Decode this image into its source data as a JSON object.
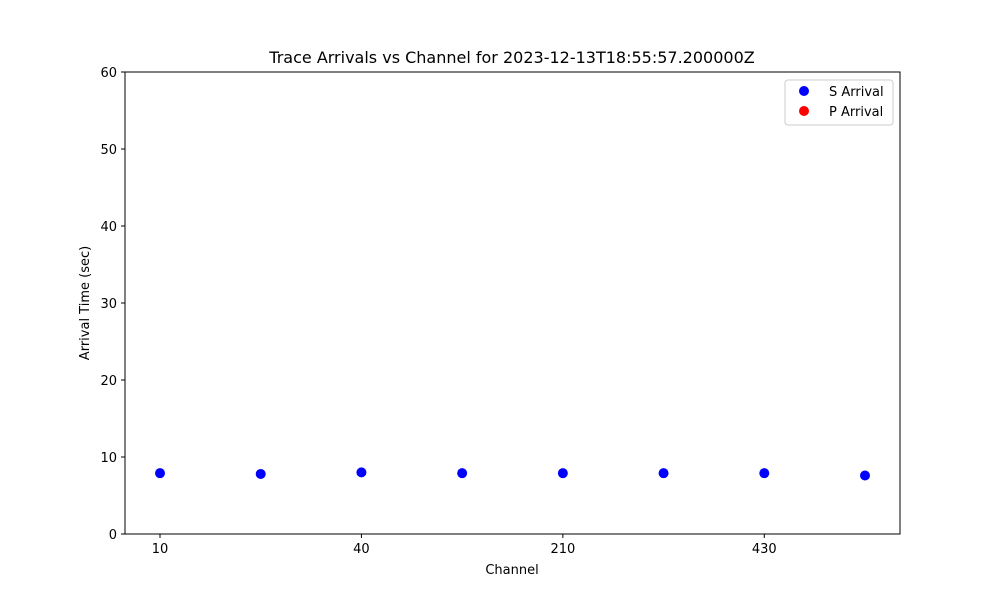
{
  "chart_data": {
    "type": "scatter",
    "title": "Trace Arrivals vs Channel for 2023-12-13T18:55:57.200000Z",
    "xlabel": "Channel",
    "ylabel": "Arrival Time (sec)",
    "categories": [
      "10",
      "",
      "40",
      "",
      "210",
      "",
      "430",
      ""
    ],
    "xtick_labels": [
      "10",
      "40",
      "210",
      "430"
    ],
    "yticks": [
      0,
      10,
      20,
      30,
      40,
      50,
      60
    ],
    "ylim": [
      0,
      60
    ],
    "grid": false,
    "legend_position": "top-right",
    "series": [
      {
        "name": "S Arrival",
        "color": "#0000ff",
        "values": [
          7.9,
          7.8,
          8.0,
          7.9,
          7.9,
          7.9,
          7.9,
          7.6
        ]
      },
      {
        "name": "P Arrival",
        "color": "#ff0000",
        "values": []
      }
    ]
  }
}
